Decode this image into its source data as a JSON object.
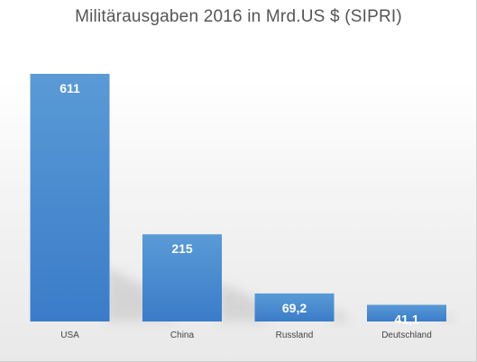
{
  "chart_data": {
    "type": "bar",
    "title": "Militärausgaben 2016 in Mrd.US $ (SIPRI)",
    "categories": [
      "USA",
      "China",
      "Russland",
      "Deutschland"
    ],
    "values": [
      611,
      215,
      69.2,
      41.1
    ],
    "data_labels": [
      "611",
      "215",
      "69,2",
      "41,1"
    ],
    "xlabel": "",
    "ylabel": "",
    "ylim": [
      0,
      611
    ],
    "grid": false,
    "legend": "none",
    "colors": {
      "bar_top": "#5a9ad6",
      "bar_bottom": "#3a7cc9",
      "shadow": "#cfcfcf"
    }
  }
}
